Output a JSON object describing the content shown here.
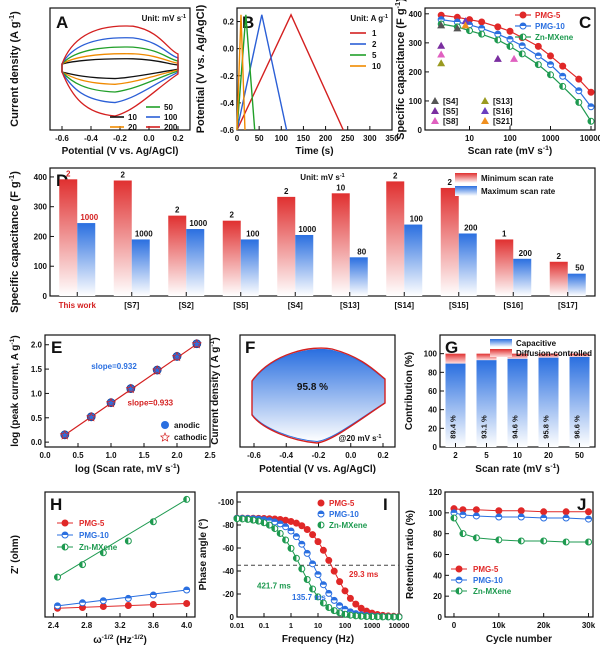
{
  "panels": {
    "A": {
      "letter": "A",
      "unit": "Unit: mV s",
      "unit_exp": "-1",
      "ylabel": "Current density (A g",
      "ylabel_exp": "-1",
      "ylabel_end": ")",
      "xlabel": "Potential (V vs. Ag/AgCl)",
      "xticks": [
        "-0.6",
        "-0.4",
        "-0.2",
        "0.0",
        "0.2"
      ],
      "legend": [
        {
          "label": "50",
          "color": "#22a02a"
        },
        {
          "label": "10",
          "color": "#111111"
        },
        {
          "label": "100",
          "color": "#2b5fd6"
        },
        {
          "label": "20",
          "color": "#f08a00"
        },
        {
          "label": "200",
          "color": "#d42020"
        }
      ]
    },
    "B": {
      "letter": "B",
      "unit": "Unit: A g",
      "unit_exp": "-1",
      "ylabel": "Potential (V vs. Ag/AgCl)",
      "xlabel": "Time (s)",
      "xticks": [
        "0",
        "50",
        "100",
        "150",
        "200",
        "250",
        "300",
        "350"
      ],
      "yticks": [
        "0.2",
        "0.0",
        "-0.2",
        "-0.4",
        "-0.6"
      ],
      "legend": [
        {
          "label": "1",
          "color": "#d42020"
        },
        {
          "label": "2",
          "color": "#2b5fd6"
        },
        {
          "label": "5",
          "color": "#22a02a"
        },
        {
          "label": "10",
          "color": "#f08a00"
        }
      ]
    },
    "C": {
      "letter": "C",
      "ylabel": "Specific capacitance (F g",
      "ylabel_exp": "-1",
      "ylabel_end": ")",
      "xlabel": "Scan rate (mV s",
      "xlabel_exp": "-1",
      "xlabel_end": ")",
      "xticks": [
        "10",
        "100",
        "1000",
        "10000"
      ],
      "yticks": [
        "0",
        "100",
        "200",
        "300",
        "400"
      ],
      "refs": [
        "[S4]",
        "[S5]",
        "[S8]",
        "[S13]",
        "[S16]",
        "[S21]"
      ]
    },
    "D": {
      "letter": "D",
      "unit": "Unit: mV s",
      "unit_exp": "-1",
      "ylabel": "Specific capacitance (F g",
      "ylabel_exp": "-1",
      "ylabel_end": ")",
      "yticks": [
        "0",
        "100",
        "200",
        "300",
        "400"
      ],
      "legend_min": "Minimum scan rate",
      "legend_max": "Maximum scan rate"
    },
    "E": {
      "letter": "E",
      "ylabel": "log (peak current, A g",
      "ylabel_exp": "-1",
      "ylabel_end": ")",
      "xlabel": "log (Scan rate, mV s",
      "xlabel_exp": "-1",
      "xlabel_end": ")",
      "xticks": [
        "0.0",
        "0.5",
        "1.0",
        "1.5",
        "2.0",
        "2.5"
      ],
      "yticks": [
        "0.0",
        "0.5",
        "1.0",
        "1.5",
        "2.0"
      ],
      "slope_anodic": "slope=0.932",
      "slope_cathodic": "slope=0.933",
      "legend_anodic": "anodic",
      "legend_cathodic": "cathodic"
    },
    "F": {
      "letter": "F",
      "ylabel": "Current density ( A g",
      "ylabel_exp": "-1",
      "ylabel_end": ")",
      "xlabel": "Potential (V vs. Ag/AgCl)",
      "xticks": [
        "-0.6",
        "-0.4",
        "-0.2",
        "0.0",
        "0.2"
      ],
      "percent": "95.8 %",
      "rate": "@20 mV s",
      "rate_exp": "-1"
    },
    "G": {
      "letter": "G",
      "ylabel": "Contribution (%)",
      "xlabel": "Scan rate (mV s",
      "xlabel_exp": "-1",
      "xlabel_end": ")",
      "yticks": [
        "0",
        "20",
        "40",
        "60",
        "80",
        "100"
      ],
      "legend_cap": "Capacitive",
      "legend_diff": "Diffusion-controlled"
    },
    "H": {
      "letter": "H",
      "ylabel": "Z' (ohm)",
      "xlabel": "ω",
      "xlabel_exp": "-1/2",
      "xlabel_mid": " (Hz",
      "xlabel_exp2": "-1/2",
      "xlabel_end": ")",
      "xticks": [
        "2.4",
        "2.8",
        "3.2",
        "3.6",
        "4.0"
      ]
    },
    "I": {
      "letter": "I",
      "ylabel": "Phase angle (°)",
      "xlabel": "Frequency (Hz)",
      "xticks": [
        "0.01",
        "0.1",
        "1",
        "10",
        "100",
        "1000",
        "10000"
      ],
      "yticks": [
        "0",
        "-20",
        "-40",
        "-60",
        "-80",
        "-100"
      ],
      "annotations": [
        "29.3 ms",
        "421.7 ms",
        "135.7 ms"
      ]
    },
    "J": {
      "letter": "J",
      "ylabel": "Retention ratio (%)",
      "xlabel": "Cycle number",
      "xticks": [
        "0",
        "10k",
        "20k",
        "30k"
      ],
      "yticks": [
        "0",
        "20",
        "40",
        "60",
        "80",
        "100",
        "120"
      ]
    }
  },
  "series_labels": [
    {
      "label": "PMG-5",
      "color": "#e02828"
    },
    {
      "label": "PMG-10",
      "color": "#2a6fe0"
    },
    {
      "label": "Zn-MXene",
      "color": "#1e9a50"
    }
  ],
  "chart_data": [
    {
      "panel": "B",
      "type": "line",
      "xlabel": "Time (s)",
      "ylabel": "Potential (V vs. Ag/AgCl)",
      "xlim": [
        0,
        350
      ],
      "ylim": [
        -0.6,
        0.3
      ],
      "series": [
        {
          "name": "1",
          "x": [
            0,
            122,
            240
          ],
          "y": [
            -0.6,
            0.25,
            -0.6
          ]
        },
        {
          "name": "2",
          "x": [
            0,
            56,
            112
          ],
          "y": [
            -0.6,
            0.25,
            -0.6
          ]
        },
        {
          "name": "5",
          "x": [
            0,
            20,
            40
          ],
          "y": [
            -0.6,
            0.25,
            -0.6
          ]
        },
        {
          "name": "10",
          "x": [
            0,
            9,
            18
          ],
          "y": [
            -0.6,
            0.25,
            -0.6
          ]
        }
      ]
    },
    {
      "panel": "C",
      "type": "line",
      "xscale": "log",
      "xlim": [
        1,
        10000
      ],
      "ylim": [
        0,
        420
      ],
      "series": [
        {
          "name": "PMG-5",
          "x": [
            2,
            5,
            10,
            20,
            50,
            100,
            200,
            500,
            1000,
            2000,
            5000,
            10000
          ],
          "y": [
            395,
            388,
            380,
            372,
            355,
            340,
            318,
            288,
            255,
            220,
            175,
            130
          ]
        },
        {
          "name": "PMG-10",
          "x": [
            2,
            5,
            10,
            20,
            50,
            100,
            200,
            500,
            1000,
            2000,
            5000,
            10000
          ],
          "y": [
            380,
            372,
            362,
            350,
            330,
            312,
            290,
            255,
            225,
            185,
            135,
            80
          ]
        },
        {
          "name": "Zn-MXene",
          "x": [
            2,
            5,
            10,
            20,
            50,
            100,
            200,
            500,
            1000,
            2000,
            5000,
            10000
          ],
          "y": [
            365,
            355,
            342,
            330,
            310,
            288,
            262,
            225,
            190,
            150,
            95,
            30
          ]
        }
      ]
    },
    {
      "panel": "D",
      "type": "bar",
      "categories": [
        "This work",
        "[S7]",
        "[S2]",
        "[S5]",
        "[S4]",
        "[S13]",
        "[S14]",
        "[S15]",
        "[S16]",
        "[S17]"
      ],
      "series": [
        {
          "name": "Minimum scan rate",
          "values": [
            392,
            388,
            270,
            253,
            333,
            345,
            385,
            363,
            190,
            115
          ]
        },
        {
          "name": "Maximum scan rate",
          "values": [
            245,
            190,
            225,
            190,
            205,
            130,
            240,
            210,
            125,
            75
          ]
        }
      ],
      "min_labels": [
        "2",
        "2",
        "2",
        "2",
        "2",
        "10",
        "2",
        "2",
        "1",
        "2"
      ],
      "max_labels": [
        "1000",
        "1000",
        "1000",
        "100",
        "1000",
        "80",
        "100",
        "200",
        "200",
        "50"
      ],
      "ylim": [
        0,
        430
      ]
    },
    {
      "panel": "E",
      "type": "scatter",
      "xlim": [
        0,
        2.5
      ],
      "ylim": [
        -0.1,
        2.2
      ],
      "series": [
        {
          "name": "anodic",
          "x": [
            0.3,
            0.7,
            1.0,
            1.3,
            1.7,
            2.0,
            2.3
          ],
          "y": [
            0.15,
            0.52,
            0.81,
            1.1,
            1.48,
            1.76,
            2.02
          ]
        },
        {
          "name": "cathodic",
          "x": [
            0.3,
            0.7,
            1.0,
            1.3,
            1.7,
            2.0,
            2.3
          ],
          "y": [
            0.15,
            0.52,
            0.81,
            1.1,
            1.48,
            1.76,
            2.02
          ]
        }
      ]
    },
    {
      "panel": "G",
      "type": "bar",
      "categories": [
        "2",
        "5",
        "10",
        "20",
        "50"
      ],
      "series": [
        {
          "name": "Capacitive",
          "values": [
            89.4,
            93.1,
            94.6,
            95.8,
            96.6
          ]
        },
        {
          "name": "Diffusion-controlled",
          "values": [
            10.6,
            6.9,
            5.4,
            4.2,
            3.4
          ]
        }
      ],
      "value_labels": [
        "89.4 %",
        "93.1 %",
        "94.6 %",
        "95.8 %",
        "96.6 %"
      ],
      "ylim": [
        0,
        120
      ]
    },
    {
      "panel": "H",
      "type": "line",
      "xlim": [
        2.3,
        4.1
      ],
      "ylim": [
        0,
        370
      ],
      "series": [
        {
          "name": "PMG-5",
          "x": [
            2.45,
            2.75,
            3.0,
            3.3,
            3.6,
            4.0
          ],
          "y": [
            26,
            28,
            31,
            34,
            37,
            40
          ]
        },
        {
          "name": "PMG-10",
          "x": [
            2.45,
            2.75,
            3.0,
            3.3,
            3.6,
            4.0
          ],
          "y": [
            33,
            42,
            48,
            55,
            65,
            80
          ]
        },
        {
          "name": "Zn-MXene",
          "x": [
            2.45,
            2.75,
            3.0,
            3.3,
            3.6,
            4.0
          ],
          "y": [
            118,
            155,
            190,
            225,
            282,
            348
          ]
        }
      ]
    },
    {
      "panel": "I",
      "type": "line",
      "xscale": "log",
      "xlim": [
        0.01,
        10000
      ],
      "ylim": [
        -100,
        0
      ],
      "series": [
        {
          "name": "PMG-5",
          "fc": 34.1
        },
        {
          "name": "PMG-10",
          "fc": 7.4
        },
        {
          "name": "Zn-MXene",
          "fc": 2.37
        }
      ]
    },
    {
      "panel": "J",
      "type": "line",
      "xlim": [
        -2000,
        31000
      ],
      "ylim": [
        0,
        120
      ],
      "series": [
        {
          "name": "PMG-5",
          "x": [
            0,
            2000,
            5000,
            10000,
            15000,
            20000,
            25000,
            30000
          ],
          "y": [
            104,
            103,
            103,
            102,
            102,
            101,
            101,
            101
          ]
        },
        {
          "name": "PMG-10",
          "x": [
            0,
            2000,
            5000,
            10000,
            15000,
            20000,
            25000,
            30000
          ],
          "y": [
            100,
            98,
            97,
            96,
            96,
            95,
            95,
            94
          ]
        },
        {
          "name": "Zn-MXene",
          "x": [
            0,
            2000,
            5000,
            10000,
            15000,
            20000,
            25000,
            30000
          ],
          "y": [
            95,
            80,
            76,
            74,
            73,
            73,
            72,
            72
          ]
        }
      ]
    }
  ]
}
